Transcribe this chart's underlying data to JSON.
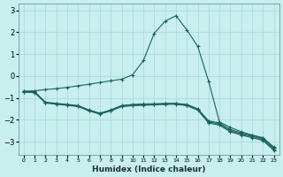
{
  "xlabel": "Humidex (Indice chaleur)",
  "bg_color": "#c8eeee",
  "grid_color": "#a8d8d8",
  "line_color": "#1a6060",
  "xlim": [
    -0.5,
    23.5
  ],
  "ylim": [
    -3.6,
    3.3
  ],
  "yticks": [
    -3,
    -2,
    -1,
    0,
    1,
    2,
    3
  ],
  "xticks": [
    0,
    1,
    2,
    3,
    4,
    5,
    6,
    7,
    8,
    9,
    10,
    11,
    12,
    13,
    14,
    15,
    16,
    17,
    18,
    19,
    20,
    21,
    22,
    23
  ],
  "line1_x": [
    0,
    1,
    2,
    3,
    4,
    5,
    6,
    7,
    8,
    9,
    10,
    11,
    12,
    13,
    14,
    15,
    16,
    17,
    18,
    19,
    20,
    21,
    22,
    23
  ],
  "line1_y": [
    -0.7,
    -0.68,
    -0.62,
    -0.58,
    -0.52,
    -0.45,
    -0.38,
    -0.3,
    -0.22,
    -0.15,
    0.05,
    0.7,
    1.95,
    2.5,
    2.75,
    2.1,
    1.35,
    -0.25,
    -2.1,
    -2.35,
    -2.55,
    -2.7,
    -2.82,
    -3.25
  ],
  "line2_x": [
    0,
    1,
    2,
    3,
    4,
    5,
    6,
    7,
    8,
    9,
    10,
    11,
    12,
    13,
    14,
    15,
    16,
    17,
    18,
    19,
    20,
    21,
    22,
    23
  ],
  "line2_y": [
    -0.7,
    -0.72,
    -1.2,
    -1.25,
    -1.3,
    -1.35,
    -1.55,
    -1.7,
    -1.55,
    -1.35,
    -1.3,
    -1.28,
    -1.27,
    -1.25,
    -1.25,
    -1.3,
    -1.5,
    -2.05,
    -2.15,
    -2.45,
    -2.6,
    -2.72,
    -2.85,
    -3.3
  ],
  "line3_x": [
    0,
    1,
    2,
    3,
    4,
    5,
    6,
    7,
    8,
    9,
    10,
    11,
    12,
    13,
    14,
    15,
    16,
    17,
    18,
    19,
    20,
    21,
    22,
    23
  ],
  "line3_y": [
    -0.72,
    -0.74,
    -1.22,
    -1.27,
    -1.32,
    -1.38,
    -1.58,
    -1.72,
    -1.58,
    -1.38,
    -1.33,
    -1.31,
    -1.3,
    -1.28,
    -1.27,
    -1.33,
    -1.53,
    -2.1,
    -2.2,
    -2.5,
    -2.65,
    -2.77,
    -2.9,
    -3.35
  ],
  "line4_x": [
    0,
    1,
    2,
    3,
    4,
    5,
    6,
    7,
    8,
    9,
    10,
    11,
    12,
    13,
    14,
    15,
    16,
    17,
    18,
    19,
    20,
    21,
    22,
    23
  ],
  "line4_y": [
    -0.74,
    -0.76,
    -1.24,
    -1.29,
    -1.34,
    -1.4,
    -1.6,
    -1.74,
    -1.6,
    -1.4,
    -1.36,
    -1.34,
    -1.32,
    -1.3,
    -1.29,
    -1.36,
    -1.56,
    -2.15,
    -2.25,
    -2.55,
    -2.7,
    -2.82,
    -2.95,
    -3.4
  ]
}
